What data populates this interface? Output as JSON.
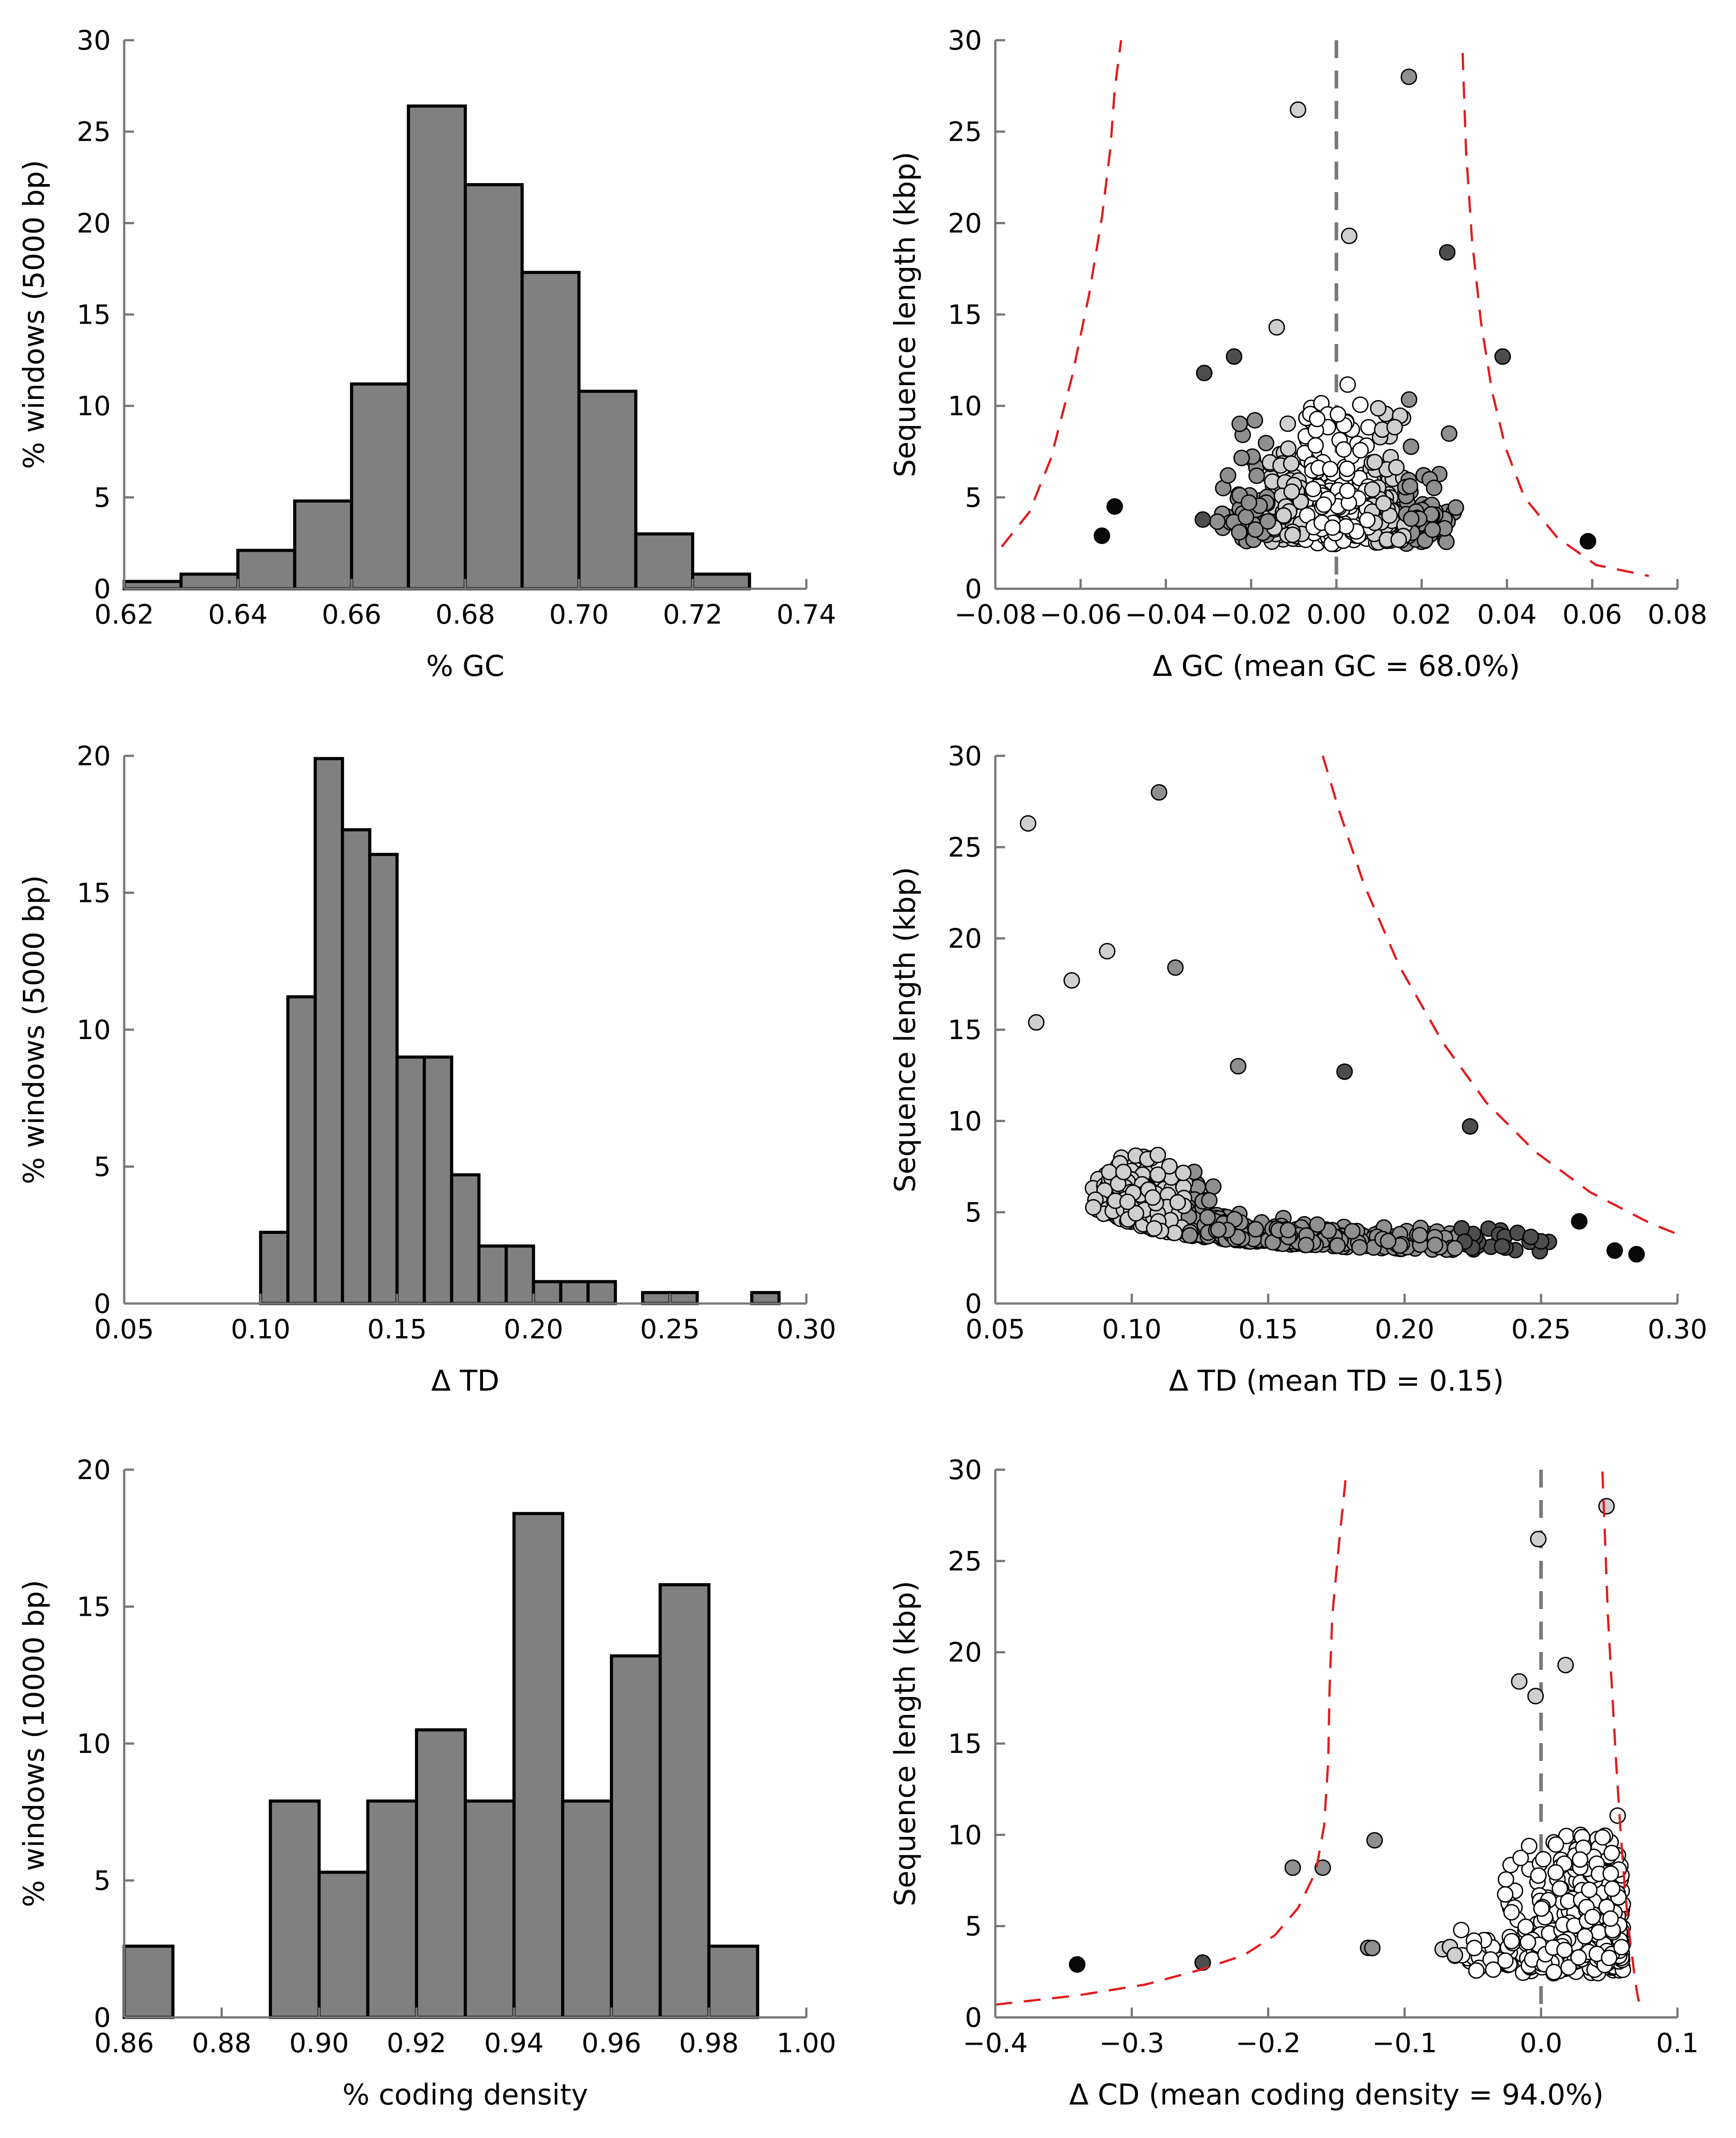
{
  "chart_data": [
    {
      "type": "bar",
      "xlabel": "% GC",
      "ylabel": "% windows (5000 bp)",
      "xlim": [
        0.62,
        0.74
      ],
      "ylim": [
        0,
        30
      ],
      "xticks": [
        "0.62",
        "0.64",
        "0.66",
        "0.68",
        "0.70",
        "0.72",
        "0.74"
      ],
      "yticks": [
        "0",
        "5",
        "10",
        "15",
        "20",
        "25",
        "30"
      ],
      "bin_width": 0.01,
      "bins": [
        0.62,
        0.63,
        0.64,
        0.65,
        0.66,
        0.67,
        0.68,
        0.69,
        0.7,
        0.71,
        0.72
      ],
      "values": [
        0.4,
        0.8,
        2.1,
        4.8,
        11.2,
        26.4,
        22.1,
        17.3,
        10.8,
        3.0,
        0.8
      ],
      "bar_color": "#808080"
    },
    {
      "type": "scatter",
      "xlabel": "Δ GC (mean GC = 68.0%)",
      "ylabel": "Sequence length (kbp)",
      "xlim": [
        -0.08,
        0.08
      ],
      "ylim": [
        0,
        30
      ],
      "xticks": [
        "−0.08",
        "−0.06",
        "−0.04",
        "−0.02",
        "0.00",
        "0.02",
        "0.04",
        "0.06",
        "0.08"
      ],
      "yticks": [
        "0",
        "5",
        "10",
        "15",
        "20",
        "25",
        "30"
      ],
      "reference_line_x": 0,
      "envelope_color": "#e31a1c",
      "envelope": [
        {
          "name": "",
          "x": [
            -0.0785,
            -0.072,
            -0.067,
            -0.062,
            -0.058,
            -0.055,
            -0.053,
            -0.052,
            -0.0505
          ],
          "y": [
            2.3,
            4.2,
            7.1,
            11.6,
            16.1,
            20.3,
            24.1,
            27.3,
            30.0
          ]
        },
        {
          "name": "",
          "x": [
            0.0296,
            0.0304,
            0.0318,
            0.0339,
            0.0365,
            0.0397,
            0.0441,
            0.0518,
            0.0609,
            0.0733
          ],
          "y": [
            29.3,
            24.0,
            19.1,
            14.6,
            10.8,
            7.7,
            5.0,
            2.8,
            1.3,
            0.7
          ]
        }
      ],
      "highlight_points": [
        {
          "x": -0.009,
          "y": 26.2,
          "shade": "light"
        },
        {
          "x": 0.017,
          "y": 28.0,
          "shade": "mid"
        },
        {
          "x": 0.003,
          "y": 19.3,
          "shade": "light"
        },
        {
          "x": 0.026,
          "y": 18.4,
          "shade": "dark"
        },
        {
          "x": -0.014,
          "y": 14.3,
          "shade": "light"
        },
        {
          "x": -0.024,
          "y": 12.7,
          "shade": "dark"
        },
        {
          "x": 0.039,
          "y": 12.7,
          "shade": "dark"
        },
        {
          "x": -0.031,
          "y": 11.8,
          "shade": "dark"
        },
        {
          "x": 0.059,
          "y": 2.6,
          "shade": "black"
        },
        {
          "x": -0.052,
          "y": 4.5,
          "shade": "black"
        },
        {
          "x": -0.055,
          "y": 2.9,
          "shade": "black"
        }
      ]
    },
    {
      "type": "bar",
      "xlabel": "Δ TD",
      "ylabel": "% windows (5000 bp)",
      "xlim": [
        0.05,
        0.3
      ],
      "ylim": [
        0,
        20
      ],
      "xticks": [
        "0.05",
        "0.10",
        "0.15",
        "0.20",
        "0.25",
        "0.30"
      ],
      "yticks": [
        "0",
        "5",
        "10",
        "15",
        "20"
      ],
      "bin_width": 0.01,
      "bins": [
        0.1,
        0.11,
        0.12,
        0.13,
        0.14,
        0.15,
        0.16,
        0.17,
        0.18,
        0.19,
        0.2,
        0.21,
        0.22,
        0.23,
        0.24,
        0.25,
        0.26,
        0.27,
        0.28
      ],
      "values": [
        2.6,
        11.2,
        19.9,
        17.3,
        16.4,
        9.0,
        9.0,
        4.7,
        2.1,
        2.1,
        0.8,
        0.8,
        0.8,
        0,
        0.4,
        0.4,
        0,
        0,
        0.4
      ],
      "bar_color": "#808080"
    },
    {
      "type": "scatter",
      "xlabel": "Δ TD (mean TD = 0.15)",
      "ylabel": "Sequence length (kbp)",
      "xlim": [
        0.05,
        0.3
      ],
      "ylim": [
        0,
        30
      ],
      "xticks": [
        "0.05",
        "0.10",
        "0.15",
        "0.20",
        "0.25",
        "0.30"
      ],
      "yticks": [
        "0",
        "5",
        "10",
        "15",
        "20",
        "25",
        "30"
      ],
      "envelope_color": "#e31a1c",
      "envelope": [
        {
          "name": "",
          "x": [
            0.17,
            0.176,
            0.185,
            0.198,
            0.214,
            0.23,
            0.248,
            0.268,
            0.29,
            0.3
          ],
          "y": [
            30.0,
            27.0,
            23.0,
            18.5,
            14.3,
            11.0,
            8.3,
            6.1,
            4.4,
            3.8
          ]
        }
      ],
      "highlight_points": [
        {
          "x": 0.062,
          "y": 26.3,
          "shade": "light"
        },
        {
          "x": 0.11,
          "y": 28.0,
          "shade": "mid"
        },
        {
          "x": 0.091,
          "y": 19.3,
          "shade": "light"
        },
        {
          "x": 0.116,
          "y": 18.4,
          "shade": "mid"
        },
        {
          "x": 0.078,
          "y": 17.7,
          "shade": "light"
        },
        {
          "x": 0.065,
          "y": 15.4,
          "shade": "light"
        },
        {
          "x": 0.139,
          "y": 13.0,
          "shade": "mid"
        },
        {
          "x": 0.178,
          "y": 12.7,
          "shade": "dark"
        },
        {
          "x": 0.224,
          "y": 9.7,
          "shade": "dark"
        },
        {
          "x": 0.264,
          "y": 4.5,
          "shade": "black"
        },
        {
          "x": 0.277,
          "y": 2.9,
          "shade": "black"
        },
        {
          "x": 0.285,
          "y": 2.7,
          "shade": "black"
        }
      ]
    },
    {
      "type": "bar",
      "xlabel": "% coding density",
      "ylabel": "% windows (10000 bp)",
      "xlim": [
        0.86,
        1.0
      ],
      "ylim": [
        0,
        20
      ],
      "xticks": [
        "0.86",
        "0.88",
        "0.90",
        "0.92",
        "0.94",
        "0.96",
        "0.98",
        "1.00"
      ],
      "yticks": [
        "0",
        "5",
        "10",
        "15",
        "20"
      ],
      "bin_width": 0.01,
      "bins": [
        0.86,
        0.87,
        0.88,
        0.89,
        0.9,
        0.91,
        0.92,
        0.93,
        0.94,
        0.95,
        0.96,
        0.97,
        0.98
      ],
      "values": [
        2.6,
        0,
        0,
        7.9,
        5.3,
        7.9,
        10.5,
        7.9,
        18.4,
        7.9,
        13.2,
        15.8,
        2.6
      ],
      "bar_color": "#808080"
    },
    {
      "type": "scatter",
      "xlabel": "Δ CD (mean coding density = 94.0%)",
      "ylabel": "Sequence length (kbp)",
      "xlim": [
        -0.4,
        0.1
      ],
      "ylim": [
        0,
        30
      ],
      "xticks": [
        "−0.4",
        "−0.3",
        "−0.2",
        "−0.1",
        "0.0",
        "0.1"
      ],
      "yticks": [
        "0",
        "5",
        "10",
        "15",
        "20",
        "25",
        "30"
      ],
      "reference_line_x": 0,
      "envelope_color": "#e31a1c",
      "envelope": [
        {
          "name": "",
          "x": [
            -0.4,
            -0.34,
            -0.29,
            -0.25,
            -0.218,
            -0.195,
            -0.178,
            -0.165,
            -0.159,
            -0.156,
            -0.155,
            -0.153,
            -0.148,
            -0.143
          ],
          "y": [
            0.7,
            1.2,
            1.8,
            2.6,
            3.4,
            4.5,
            6.0,
            8.0,
            10.5,
            14.0,
            18.0,
            22.0,
            26.0,
            29.7
          ]
        },
        {
          "name": "",
          "x": [
            0.045,
            0.047,
            0.049,
            0.052,
            0.055,
            0.058,
            0.061,
            0.064,
            0.067,
            0.069,
            0.071,
            0.073
          ],
          "y": [
            29.9,
            26.0,
            22.0,
            18.0,
            14.0,
            10.5,
            7.5,
            5.0,
            3.2,
            2.0,
            1.1,
            0.5
          ]
        }
      ],
      "highlight_points": [
        {
          "x": -0.002,
          "y": 26.2,
          "shade": "light"
        },
        {
          "x": 0.048,
          "y": 28.0,
          "shade": "light"
        },
        {
          "x": 0.018,
          "y": 19.3,
          "shade": "light"
        },
        {
          "x": -0.016,
          "y": 18.4,
          "shade": "light"
        },
        {
          "x": -0.004,
          "y": 17.6,
          "shade": "light"
        },
        {
          "x": -0.34,
          "y": 2.9,
          "shade": "black"
        },
        {
          "x": -0.248,
          "y": 3.0,
          "shade": "dark"
        },
        {
          "x": -0.182,
          "y": 8.2,
          "shade": "mid"
        },
        {
          "x": -0.16,
          "y": 8.2,
          "shade": "mid"
        },
        {
          "x": -0.122,
          "y": 9.7,
          "shade": "mid"
        }
      ]
    }
  ]
}
